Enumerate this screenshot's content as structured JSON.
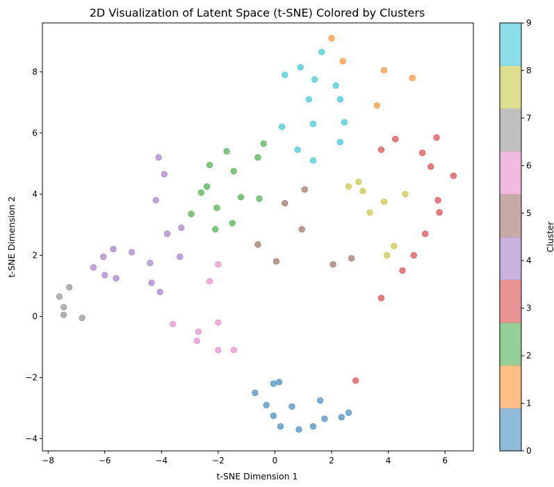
{
  "chart_data": {
    "type": "scatter",
    "title": "2D Visualization of Latent Space (t-SNE) Colored by Clusters",
    "xlabel": "t-SNE Dimension 1",
    "ylabel": "t-SNE Dimension 2",
    "xlim": [
      -8.2,
      7.0
    ],
    "ylim": [
      -4.4,
      9.6
    ],
    "xticks": [
      -8,
      -6,
      -4,
      -2,
      0,
      2,
      4,
      6
    ],
    "yticks": [
      -4,
      -2,
      0,
      2,
      4,
      6,
      8
    ],
    "grid": false,
    "colorbar": {
      "label": "Cluster",
      "ticks": [
        0,
        1,
        2,
        3,
        4,
        5,
        6,
        7,
        8,
        9
      ],
      "colors": [
        "#1f77b4",
        "#ff7f0e",
        "#2ca02c",
        "#d62728",
        "#9467bd",
        "#8c564b",
        "#e377c2",
        "#7f7f7f",
        "#bcbd22",
        "#17becf"
      ],
      "alpha": 0.5
    },
    "point_alpha": 0.6,
    "series": [
      {
        "cluster": 0,
        "color": "#1f77b4",
        "points": [
          [
            -0.7,
            -2.5
          ],
          [
            -0.3,
            -2.9
          ],
          [
            -0.05,
            -2.2
          ],
          [
            0.15,
            -2.15
          ],
          [
            -0.05,
            -3.25
          ],
          [
            0.2,
            -3.6
          ],
          [
            0.6,
            -2.95
          ],
          [
            0.85,
            -3.7
          ],
          [
            1.35,
            -3.6
          ],
          [
            1.6,
            -2.75
          ],
          [
            1.75,
            -3.35
          ],
          [
            2.35,
            -3.3
          ],
          [
            2.6,
            -3.15
          ]
        ]
      },
      {
        "cluster": 1,
        "color": "#ff7f0e",
        "points": [
          [
            2.0,
            9.1
          ],
          [
            2.4,
            8.35
          ],
          [
            3.85,
            8.05
          ],
          [
            4.85,
            7.8
          ],
          [
            3.6,
            6.9
          ]
        ]
      },
      {
        "cluster": 2,
        "color": "#2ca02c",
        "points": [
          [
            -0.4,
            5.65
          ],
          [
            -1.7,
            5.4
          ],
          [
            -0.6,
            5.2
          ],
          [
            -2.3,
            4.95
          ],
          [
            -1.45,
            4.75
          ],
          [
            -2.4,
            4.25
          ],
          [
            -2.6,
            4.05
          ],
          [
            -1.2,
            3.9
          ],
          [
            -0.55,
            3.85
          ],
          [
            -2.05,
            3.55
          ],
          [
            -2.95,
            3.35
          ],
          [
            -1.5,
            3.05
          ],
          [
            -2.1,
            2.85
          ]
        ]
      },
      {
        "cluster": 3,
        "color": "#d62728",
        "points": [
          [
            4.25,
            5.8
          ],
          [
            5.7,
            5.85
          ],
          [
            3.75,
            5.45
          ],
          [
            5.2,
            5.35
          ],
          [
            5.5,
            4.9
          ],
          [
            6.3,
            4.6
          ],
          [
            5.75,
            3.8
          ],
          [
            5.8,
            3.4
          ],
          [
            5.3,
            2.7
          ],
          [
            4.9,
            2.0
          ],
          [
            4.5,
            1.5
          ],
          [
            3.75,
            0.6
          ],
          [
            2.85,
            -2.1
          ]
        ]
      },
      {
        "cluster": 4,
        "color": "#9467bd",
        "points": [
          [
            -4.1,
            5.2
          ],
          [
            -3.9,
            4.65
          ],
          [
            -4.2,
            3.8
          ],
          [
            -3.3,
            2.9
          ],
          [
            -3.8,
            2.7
          ],
          [
            -5.7,
            2.2
          ],
          [
            -5.05,
            2.1
          ],
          [
            -6.05,
            1.95
          ],
          [
            -3.35,
            1.95
          ],
          [
            -4.4,
            1.75
          ],
          [
            -6.4,
            1.6
          ],
          [
            -6.0,
            1.35
          ],
          [
            -5.6,
            1.25
          ],
          [
            -4.35,
            1.1
          ],
          [
            -4.05,
            0.8
          ]
        ]
      },
      {
        "cluster": 5,
        "color": "#8c564b",
        "points": [
          [
            1.05,
            4.15
          ],
          [
            0.35,
            3.7
          ],
          [
            0.95,
            2.85
          ],
          [
            -0.6,
            2.35
          ],
          [
            2.7,
            1.9
          ],
          [
            0.05,
            1.8
          ],
          [
            2.05,
            1.7
          ]
        ]
      },
      {
        "cluster": 6,
        "color": "#e377c2",
        "points": [
          [
            -2.0,
            1.7
          ],
          [
            -2.3,
            1.15
          ],
          [
            -3.6,
            -0.25
          ],
          [
            -2.0,
            -0.2
          ],
          [
            -2.7,
            -0.5
          ],
          [
            -2.75,
            -0.8
          ],
          [
            -2.0,
            -1.1
          ],
          [
            -1.45,
            -1.1
          ]
        ]
      },
      {
        "cluster": 7,
        "color": "#7f7f7f",
        "points": [
          [
            -7.25,
            0.95
          ],
          [
            -7.6,
            0.65
          ],
          [
            -7.45,
            0.3
          ],
          [
            -7.45,
            0.05
          ],
          [
            -6.8,
            -0.05
          ]
        ]
      },
      {
        "cluster": 8,
        "color": "#bcbd22",
        "points": [
          [
            2.95,
            4.4
          ],
          [
            2.6,
            4.25
          ],
          [
            3.1,
            4.1
          ],
          [
            4.6,
            4.0
          ],
          [
            3.85,
            3.75
          ],
          [
            3.35,
            3.4
          ],
          [
            4.2,
            2.3
          ],
          [
            3.95,
            2.0
          ]
        ]
      },
      {
        "cluster": 9,
        "color": "#17becf",
        "points": [
          [
            1.65,
            8.65
          ],
          [
            0.9,
            8.15
          ],
          [
            0.35,
            7.9
          ],
          [
            1.4,
            7.75
          ],
          [
            2.15,
            7.55
          ],
          [
            1.2,
            7.1
          ],
          [
            2.3,
            7.1
          ],
          [
            1.35,
            6.3
          ],
          [
            2.45,
            6.35
          ],
          [
            0.25,
            6.2
          ],
          [
            2.3,
            5.7
          ],
          [
            0.8,
            5.45
          ],
          [
            1.35,
            5.1
          ]
        ]
      }
    ]
  }
}
